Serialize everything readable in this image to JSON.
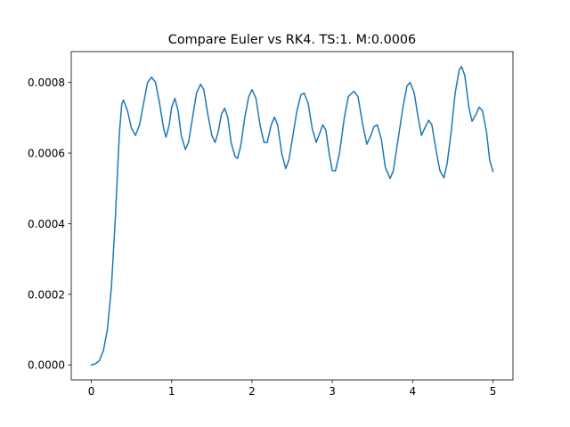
{
  "chart_data": {
    "type": "line",
    "title": "Compare Euler vs RK4. TS:1. M:0.0006",
    "xlabel": "",
    "ylabel": "",
    "xlim": [
      -0.25,
      5.25
    ],
    "ylim": [
      -4.23e-05,
      0.0008874
    ],
    "grid": false,
    "x_ticks": [
      0,
      1,
      2,
      3,
      4,
      5
    ],
    "x_tick_labels": [
      "0",
      "1",
      "2",
      "3",
      "4",
      "5"
    ],
    "y_ticks": [
      0.0,
      0.0002,
      0.0004,
      0.0006,
      0.0008
    ],
    "y_tick_labels": [
      "0.0000",
      "0.0002",
      "0.0004",
      "0.0006",
      "0.0008"
    ],
    "series": [
      {
        "color": "#1f77b4",
        "points": [
          [
            0.0,
            0.0
          ],
          [
            0.05,
            3e-06
          ],
          [
            0.1,
            1.2e-05
          ],
          [
            0.15,
            4e-05
          ],
          [
            0.2,
            0.0001
          ],
          [
            0.25,
            0.00022
          ],
          [
            0.3,
            0.00042
          ],
          [
            0.35,
            0.00066
          ],
          [
            0.38,
            0.00074
          ],
          [
            0.4,
            0.00075
          ],
          [
            0.45,
            0.00072
          ],
          [
            0.5,
            0.00067
          ],
          [
            0.55,
            0.00065
          ],
          [
            0.6,
            0.00068
          ],
          [
            0.65,
            0.00074
          ],
          [
            0.7,
            0.0008
          ],
          [
            0.75,
            0.000815
          ],
          [
            0.8,
            0.0008
          ],
          [
            0.85,
            0.00074
          ],
          [
            0.9,
            0.00067
          ],
          [
            0.93,
            0.000645
          ],
          [
            0.97,
            0.00068
          ],
          [
            1.0,
            0.00073
          ],
          [
            1.04,
            0.000755
          ],
          [
            1.08,
            0.00072
          ],
          [
            1.12,
            0.00065
          ],
          [
            1.17,
            0.00061
          ],
          [
            1.21,
            0.00063
          ],
          [
            1.26,
            0.0007
          ],
          [
            1.31,
            0.00077
          ],
          [
            1.36,
            0.000795
          ],
          [
            1.4,
            0.00078
          ],
          [
            1.45,
            0.00071
          ],
          [
            1.5,
            0.00065
          ],
          [
            1.54,
            0.00063
          ],
          [
            1.58,
            0.00066
          ],
          [
            1.62,
            0.00071
          ],
          [
            1.66,
            0.000727
          ],
          [
            1.7,
            0.0007
          ],
          [
            1.74,
            0.00063
          ],
          [
            1.79,
            0.00059
          ],
          [
            1.82,
            0.000585
          ],
          [
            1.86,
            0.00062
          ],
          [
            1.91,
            0.0007
          ],
          [
            1.96,
            0.00076
          ],
          [
            2.0,
            0.00078
          ],
          [
            2.05,
            0.000755
          ],
          [
            2.1,
            0.00068
          ],
          [
            2.15,
            0.00063
          ],
          [
            2.19,
            0.00063
          ],
          [
            2.24,
            0.00068
          ],
          [
            2.28,
            0.000702
          ],
          [
            2.32,
            0.00068
          ],
          [
            2.37,
            0.0006
          ],
          [
            2.42,
            0.000556
          ],
          [
            2.46,
            0.00058
          ],
          [
            2.51,
            0.00065
          ],
          [
            2.56,
            0.00072
          ],
          [
            2.61,
            0.000765
          ],
          [
            2.65,
            0.00077
          ],
          [
            2.7,
            0.00074
          ],
          [
            2.75,
            0.00067
          ],
          [
            2.8,
            0.00063
          ],
          [
            2.85,
            0.00066
          ],
          [
            2.88,
            0.00068
          ],
          [
            2.92,
            0.000665
          ],
          [
            2.96,
            0.0006
          ],
          [
            3.0,
            0.00055
          ],
          [
            3.04,
            0.00055
          ],
          [
            3.09,
            0.0006
          ],
          [
            3.15,
            0.0007
          ],
          [
            3.2,
            0.00076
          ],
          [
            3.27,
            0.000775
          ],
          [
            3.32,
            0.00076
          ],
          [
            3.38,
            0.00068
          ],
          [
            3.43,
            0.000625
          ],
          [
            3.48,
            0.00065
          ],
          [
            3.52,
            0.000675
          ],
          [
            3.56,
            0.00068
          ],
          [
            3.61,
            0.00064
          ],
          [
            3.66,
            0.00056
          ],
          [
            3.72,
            0.000528
          ],
          [
            3.76,
            0.00055
          ],
          [
            3.82,
            0.00064
          ],
          [
            3.88,
            0.00073
          ],
          [
            3.93,
            0.00079
          ],
          [
            3.97,
            0.0008
          ],
          [
            4.02,
            0.00077
          ],
          [
            4.07,
            0.0007
          ],
          [
            4.11,
            0.00065
          ],
          [
            4.15,
            0.00067
          ],
          [
            4.2,
            0.000693
          ],
          [
            4.24,
            0.00068
          ],
          [
            4.29,
            0.00061
          ],
          [
            4.34,
            0.00055
          ],
          [
            4.39,
            0.00053
          ],
          [
            4.43,
            0.00057
          ],
          [
            4.48,
            0.00066
          ],
          [
            4.53,
            0.00077
          ],
          [
            4.58,
            0.000835
          ],
          [
            4.61,
            0.000845
          ],
          [
            4.65,
            0.00082
          ],
          [
            4.7,
            0.00073
          ],
          [
            4.74,
            0.00069
          ],
          [
            4.79,
            0.00071
          ],
          [
            4.83,
            0.00073
          ],
          [
            4.87,
            0.00072
          ],
          [
            4.92,
            0.00066
          ],
          [
            4.96,
            0.00058
          ],
          [
            5.0,
            0.000548
          ]
        ]
      }
    ]
  }
}
